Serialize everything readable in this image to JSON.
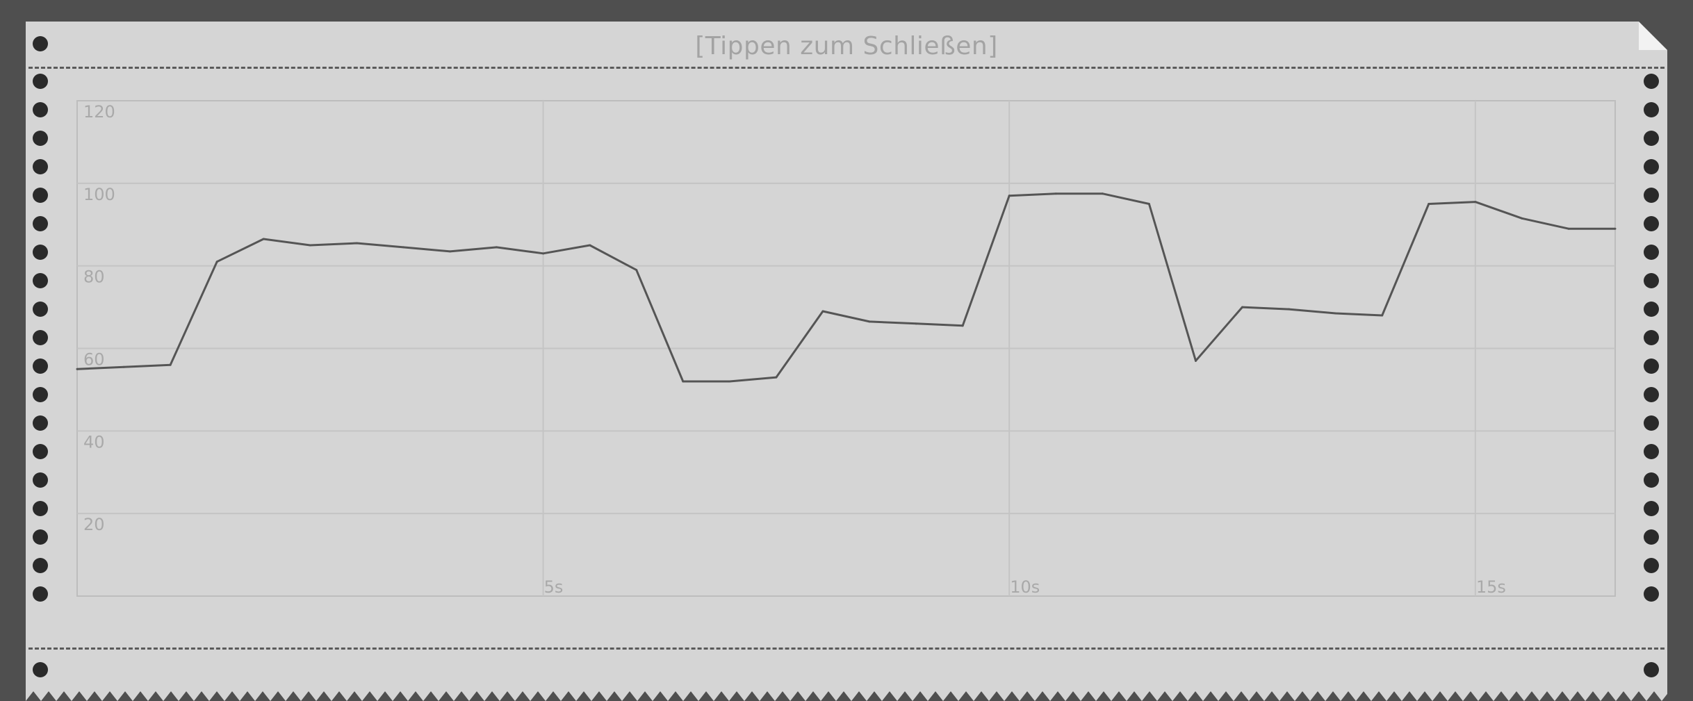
{
  "header": {
    "close_hint": "[Tippen zum Schließen]"
  },
  "colors": {
    "background": "#4f4f4f",
    "paper": "#d5d5d5",
    "line": "#555555",
    "grid": "#c3c3c3",
    "tick_text": "#a9a9a9",
    "holes": "#2a2a2a"
  },
  "chart_data": {
    "type": "line",
    "title": "",
    "xlabel": "",
    "ylabel": "",
    "xlim": [
      0,
      16.5
    ],
    "ylim": [
      0,
      120
    ],
    "grid": true,
    "y_ticks": [
      {
        "value": 120,
        "label": "120"
      },
      {
        "value": 100,
        "label": "100"
      },
      {
        "value": 80,
        "label": "80"
      },
      {
        "value": 60,
        "label": "60"
      },
      {
        "value": 40,
        "label": "40"
      },
      {
        "value": 20,
        "label": "20"
      }
    ],
    "x_ticks": [
      {
        "value": 5,
        "label": "5s"
      },
      {
        "value": 10,
        "label": "10s"
      },
      {
        "value": 15,
        "label": "15s"
      }
    ],
    "series": [
      {
        "x": [
          0,
          0.5,
          1.0,
          1.5,
          2.0,
          2.5,
          3.0,
          3.5,
          4.0,
          4.5,
          5.0,
          5.5,
          6.0,
          6.5,
          7.0,
          7.5,
          8.0,
          8.5,
          9.0,
          9.5,
          10.0,
          10.5,
          11.0,
          11.5,
          12.0,
          12.5,
          13.0,
          13.5,
          14.0,
          14.5,
          15.0,
          15.5,
          16.0,
          16.5
        ],
        "values": [
          55,
          55.5,
          56,
          81,
          86.5,
          85,
          85.5,
          84.5,
          83.5,
          84.5,
          83,
          85,
          79,
          52,
          52,
          53,
          69,
          66.5,
          66,
          65.5,
          97,
          97.5,
          97.5,
          95,
          57,
          70,
          69.5,
          68.5,
          68,
          95,
          95.5,
          91.5,
          89,
          89
        ]
      }
    ]
  }
}
